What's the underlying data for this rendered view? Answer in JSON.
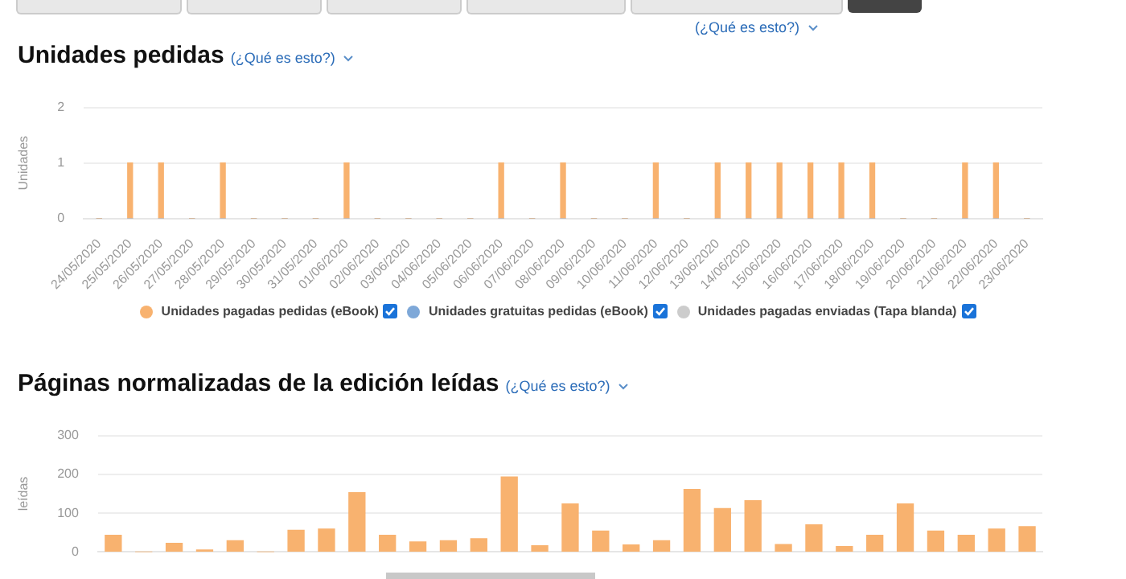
{
  "chart_data": [
    {
      "type": "bar",
      "title": "Unidades pedidas",
      "annotations": [
        "(¿Qué es esto?)",
        "(¿Qué es esto?)"
      ],
      "ylabel": "Unidades",
      "categories": [
        "24/05/2020",
        "25/05/2020",
        "26/05/2020",
        "27/05/2020",
        "28/05/2020",
        "29/05/2020",
        "30/05/2020",
        "31/05/2020",
        "01/06/2020",
        "02/06/2020",
        "03/06/2020",
        "04/06/2020",
        "05/06/2020",
        "06/06/2020",
        "07/06/2020",
        "08/06/2020",
        "09/06/2020",
        "10/06/2020",
        "11/06/2020",
        "12/06/2020",
        "13/06/2020",
        "14/06/2020",
        "15/06/2020",
        "16/06/2020",
        "17/06/2020",
        "18/06/2020",
        "19/06/2020",
        "20/06/2020",
        "21/06/2020",
        "22/06/2020",
        "23/06/2020"
      ],
      "series": [
        {
          "name": "Unidades pagadas pedidas (eBook)",
          "color": "#f8b26f",
          "values": [
            0,
            1,
            1,
            0,
            1,
            0,
            0,
            0,
            1,
            0,
            0,
            0,
            0,
            1,
            0,
            1,
            0,
            0,
            1,
            0,
            1,
            1,
            1,
            1,
            1,
            1,
            0,
            0,
            1,
            1,
            0
          ]
        },
        {
          "name": "Unidades gratuitas pedidas (eBook)",
          "color": "#7ea8d8",
          "values": [
            0,
            0,
            0,
            0,
            0,
            0,
            0,
            0,
            0,
            0,
            0,
            0,
            0,
            0,
            0,
            0,
            0,
            0,
            0,
            0,
            0,
            0,
            0,
            0,
            0,
            0,
            0,
            0,
            0,
            0,
            0
          ]
        },
        {
          "name": "Unidades pagadas enviadas (Tapa blanda)",
          "color": "#cccccc",
          "values": [
            0,
            0,
            0,
            0,
            0,
            0,
            0,
            0,
            0,
            0,
            0,
            0,
            0,
            0,
            0,
            0,
            0,
            0,
            0,
            0,
            0,
            0,
            0,
            0,
            0,
            0,
            0,
            0,
            0,
            0,
            0
          ]
        }
      ],
      "ylim": [
        0,
        2
      ],
      "yticks": [
        0,
        1,
        2
      ],
      "grid": "y",
      "legend": "bottom"
    },
    {
      "type": "bar",
      "title": "Páginas normalizadas de la edición leídas",
      "annotations": [
        "(¿Qué es esto?)"
      ],
      "ylabel": "leídas",
      "categories": [
        null,
        null,
        null,
        null,
        null,
        null,
        null,
        null,
        null,
        null,
        null,
        null,
        null,
        null,
        null,
        null,
        null,
        null,
        null,
        null,
        null,
        null,
        null,
        null,
        null,
        null,
        null,
        null,
        null,
        null,
        null
      ],
      "series": [
        {
          "color": "#f8b26f",
          "values": [
            43,
            0,
            22,
            5,
            29,
            0,
            56,
            59,
            153,
            43,
            26,
            29,
            34,
            193,
            16,
            124,
            54,
            18,
            29,
            161,
            112,
            132,
            19,
            70,
            14,
            43,
            124,
            54,
            43,
            59,
            65
          ]
        }
      ],
      "ylim": [
        0,
        300
      ],
      "yticks": [
        0,
        100,
        200,
        300
      ],
      "grid": "y",
      "tick_labels": "y"
    }
  ]
}
